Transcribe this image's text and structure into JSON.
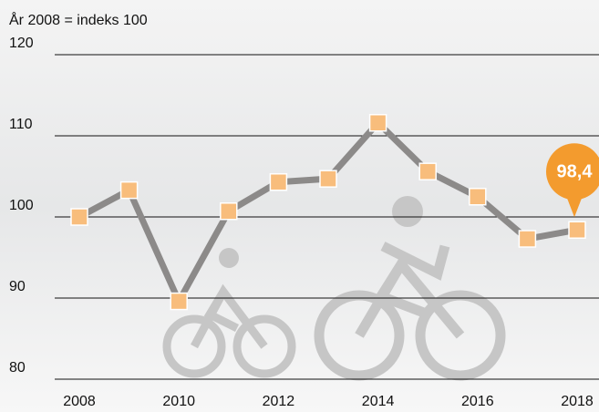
{
  "chart_data": {
    "type": "line",
    "y_label": "År 2008 = indeks 100",
    "x": [
      2008,
      2009,
      2010,
      2011,
      2012,
      2013,
      2014,
      2015,
      2016,
      2017,
      2018
    ],
    "values": [
      100,
      103.3,
      89.6,
      100.7,
      104.3,
      104.7,
      111.6,
      105.6,
      102.5,
      97.3,
      98.4
    ],
    "value_labels": [
      null,
      null,
      null,
      null,
      null,
      null,
      null,
      null,
      null,
      null,
      "98,4"
    ],
    "color": "#8c8a89",
    "marker_color": "#f8bd7c",
    "label_color": "#f39b2e",
    "xlim": [
      2008,
      2018
    ],
    "xticks": [
      2008,
      2010,
      2012,
      2014,
      2016,
      2018
    ],
    "ylim": [
      80,
      120
    ],
    "yticks": [
      80,
      90,
      100,
      110,
      120
    ],
    "grid": true
  }
}
